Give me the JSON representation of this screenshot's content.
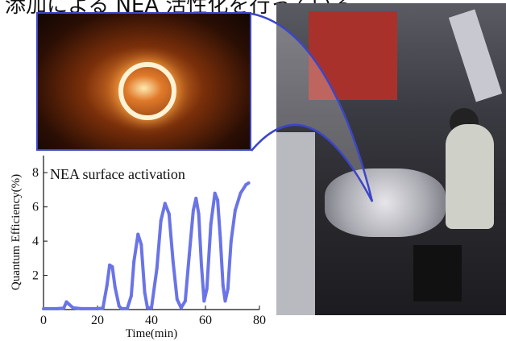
{
  "top_text": "添加による NEA 活性化を行っている。",
  "chart_data": {
    "type": "scatter",
    "title": "NEA surface activation",
    "xlabel": "Time(min)",
    "ylabel": "Quantum Efficiency(%)",
    "xlim": [
      0,
      80
    ],
    "ylim": [
      0,
      9
    ],
    "xticks": [
      "0",
      "20",
      "40",
      "60",
      "80"
    ],
    "yticks": [
      "2",
      "4",
      "6",
      "8"
    ],
    "series": [
      {
        "color": "#6a74e6",
        "points": [
          [
            0,
            0.05
          ],
          [
            5,
            0.05
          ],
          [
            7.5,
            0.08
          ],
          [
            8.5,
            0.45
          ],
          [
            9.5,
            0.3
          ],
          [
            11,
            0.1
          ],
          [
            14,
            0.05
          ],
          [
            20,
            0.05
          ],
          [
            22,
            0.08
          ],
          [
            23.5,
            1.4
          ],
          [
            24.5,
            2.6
          ],
          [
            25.5,
            2.5
          ],
          [
            26.5,
            1.3
          ],
          [
            28,
            0.2
          ],
          [
            29,
            0.05
          ],
          [
            31,
            0.05
          ],
          [
            32.5,
            0.8
          ],
          [
            33.5,
            2.8
          ],
          [
            35,
            4.4
          ],
          [
            36.2,
            3.8
          ],
          [
            37.5,
            1.0
          ],
          [
            38.5,
            0.1
          ],
          [
            40,
            0.1
          ],
          [
            42,
            2.4
          ],
          [
            43.5,
            5.2
          ],
          [
            45,
            6.2
          ],
          [
            46.5,
            5.6
          ],
          [
            48,
            2.8
          ],
          [
            49.5,
            0.6
          ],
          [
            51,
            0.1
          ],
          [
            52.5,
            0.5
          ],
          [
            54,
            3.2
          ],
          [
            55.5,
            5.8
          ],
          [
            56.5,
            6.5
          ],
          [
            57.5,
            5.6
          ],
          [
            58.5,
            2.6
          ],
          [
            59.5,
            0.5
          ],
          [
            60.5,
            1.2
          ],
          [
            62,
            5.0
          ],
          [
            63.5,
            6.8
          ],
          [
            64.5,
            6.4
          ],
          [
            65.5,
            4.2
          ],
          [
            66.5,
            1.4
          ],
          [
            67.3,
            0.5
          ],
          [
            68.3,
            1.2
          ],
          [
            69.5,
            4.0
          ],
          [
            71,
            5.8
          ],
          [
            73,
            6.8
          ],
          [
            75,
            7.3
          ],
          [
            76,
            7.4
          ]
        ]
      }
    ]
  }
}
